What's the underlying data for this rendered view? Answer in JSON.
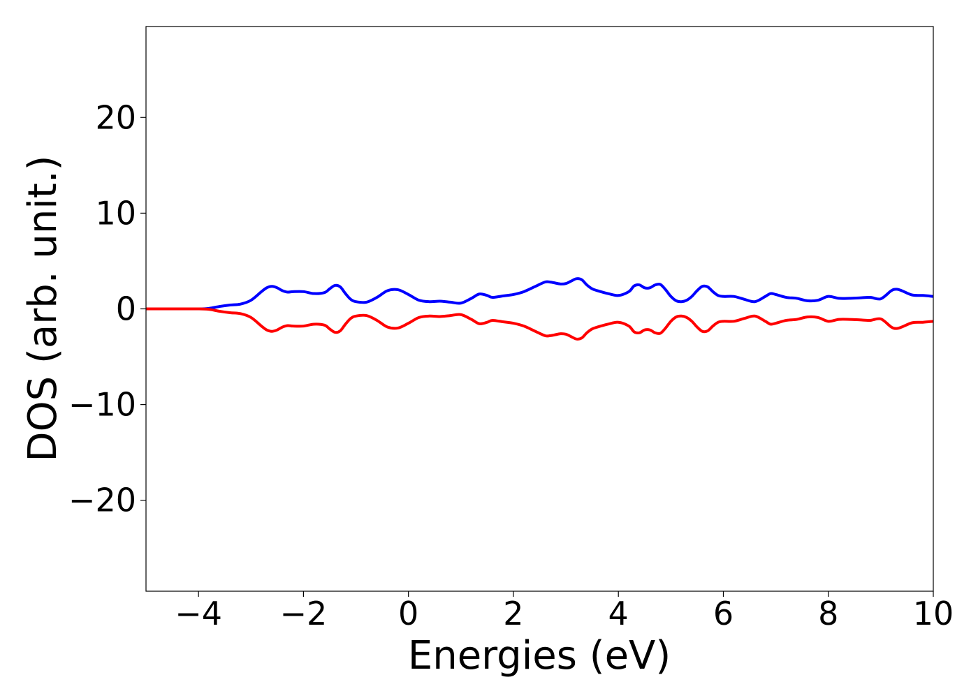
{
  "chart_data": {
    "type": "line",
    "title": "",
    "xlabel": "Energies (eV)",
    "ylabel": "DOS (arb. unit.)",
    "xlim": [
      -5,
      10
    ],
    "ylim": [
      -29.5,
      29.5
    ],
    "xticks": [
      -4,
      -2,
      0,
      2,
      4,
      6,
      8,
      10
    ],
    "xtick_labels": [
      "−4",
      "−2",
      "0",
      "2",
      "4",
      "6",
      "8",
      "10"
    ],
    "yticks": [
      20,
      10,
      0,
      -10,
      -20
    ],
    "ytick_labels": [
      "20",
      "10",
      "0",
      "−10",
      "−20"
    ],
    "grid": false,
    "legend": "none",
    "series": [
      {
        "color": "#0000ff",
        "x": [
          -5,
          -4.5,
          -4,
          -3.8,
          -3.6,
          -3.4,
          -3.2,
          -3.0,
          -2.8,
          -2.7,
          -2.6,
          -2.5,
          -2.4,
          -2.3,
          -2.2,
          -2.0,
          -1.8,
          -1.6,
          -1.5,
          -1.4,
          -1.3,
          -1.2,
          -1.1,
          -1.0,
          -0.8,
          -0.6,
          -0.4,
          -0.2,
          0,
          0.2,
          0.4,
          0.6,
          0.8,
          1.0,
          1.2,
          1.35,
          1.5,
          1.6,
          1.8,
          2.0,
          2.2,
          2.4,
          2.6,
          2.7,
          2.8,
          2.9,
          3.0,
          3.1,
          3.2,
          3.3,
          3.4,
          3.5,
          3.6,
          3.8,
          4.0,
          4.2,
          4.3,
          4.4,
          4.5,
          4.6,
          4.7,
          4.8,
          4.9,
          5.0,
          5.1,
          5.2,
          5.3,
          5.4,
          5.5,
          5.6,
          5.7,
          5.8,
          5.9,
          6.0,
          6.2,
          6.4,
          6.6,
          6.8,
          6.9,
          7.0,
          7.2,
          7.4,
          7.6,
          7.8,
          8.0,
          8.2,
          8.4,
          8.6,
          8.8,
          9.0,
          9.2,
          9.3,
          9.4,
          9.6,
          9.8,
          10.0
        ],
        "y": [
          0,
          0,
          0,
          0.05,
          0.25,
          0.4,
          0.5,
          0.9,
          1.8,
          2.2,
          2.35,
          2.2,
          1.9,
          1.75,
          1.8,
          1.8,
          1.6,
          1.7,
          2.1,
          2.45,
          2.3,
          1.6,
          1.0,
          0.75,
          0.7,
          1.2,
          1.9,
          2.0,
          1.5,
          0.9,
          0.75,
          0.8,
          0.7,
          0.6,
          1.1,
          1.55,
          1.4,
          1.2,
          1.35,
          1.5,
          1.8,
          2.3,
          2.8,
          2.8,
          2.7,
          2.6,
          2.65,
          2.9,
          3.15,
          3.05,
          2.5,
          2.1,
          1.9,
          1.6,
          1.4,
          1.8,
          2.4,
          2.5,
          2.2,
          2.2,
          2.5,
          2.55,
          2.0,
          1.3,
          0.85,
          0.75,
          0.9,
          1.3,
          1.9,
          2.35,
          2.3,
          1.8,
          1.4,
          1.3,
          1.3,
          1.0,
          0.75,
          1.3,
          1.6,
          1.5,
          1.2,
          1.1,
          0.85,
          0.9,
          1.3,
          1.1,
          1.1,
          1.15,
          1.2,
          1.05,
          1.9,
          2.05,
          1.9,
          1.45,
          1.4,
          1.3
        ]
      },
      {
        "color": "#ff0000",
        "x": [
          -5,
          -4.5,
          -4,
          -3.8,
          -3.6,
          -3.4,
          -3.2,
          -3.0,
          -2.8,
          -2.7,
          -2.6,
          -2.5,
          -2.4,
          -2.3,
          -2.2,
          -2.0,
          -1.8,
          -1.6,
          -1.5,
          -1.4,
          -1.3,
          -1.2,
          -1.1,
          -1.0,
          -0.8,
          -0.6,
          -0.4,
          -0.2,
          0,
          0.2,
          0.4,
          0.6,
          0.8,
          1.0,
          1.2,
          1.35,
          1.5,
          1.6,
          1.8,
          2.0,
          2.2,
          2.4,
          2.6,
          2.7,
          2.8,
          2.9,
          3.0,
          3.1,
          3.2,
          3.3,
          3.4,
          3.5,
          3.6,
          3.8,
          4.0,
          4.2,
          4.3,
          4.4,
          4.5,
          4.6,
          4.7,
          4.8,
          4.9,
          5.0,
          5.1,
          5.2,
          5.3,
          5.4,
          5.5,
          5.6,
          5.7,
          5.8,
          5.9,
          6.0,
          6.2,
          6.4,
          6.6,
          6.8,
          6.9,
          7.0,
          7.2,
          7.4,
          7.6,
          7.8,
          8.0,
          8.2,
          8.4,
          8.6,
          8.8,
          9.0,
          9.2,
          9.3,
          9.4,
          9.6,
          9.8,
          10.0
        ],
        "y": [
          0,
          0,
          0,
          -0.05,
          -0.25,
          -0.4,
          -0.5,
          -0.9,
          -1.8,
          -2.2,
          -2.35,
          -2.2,
          -1.9,
          -1.75,
          -1.8,
          -1.8,
          -1.6,
          -1.7,
          -2.1,
          -2.45,
          -2.3,
          -1.6,
          -1.0,
          -0.75,
          -0.7,
          -1.2,
          -1.9,
          -2.0,
          -1.5,
          -0.9,
          -0.75,
          -0.8,
          -0.7,
          -0.6,
          -1.1,
          -1.55,
          -1.4,
          -1.2,
          -1.35,
          -1.5,
          -1.8,
          -2.3,
          -2.8,
          -2.8,
          -2.7,
          -2.6,
          -2.65,
          -2.9,
          -3.15,
          -3.05,
          -2.5,
          -2.1,
          -1.9,
          -1.6,
          -1.4,
          -1.8,
          -2.4,
          -2.5,
          -2.2,
          -2.2,
          -2.5,
          -2.55,
          -2.0,
          -1.3,
          -0.85,
          -0.75,
          -0.9,
          -1.3,
          -1.9,
          -2.35,
          -2.3,
          -1.8,
          -1.4,
          -1.3,
          -1.3,
          -1.0,
          -0.75,
          -1.3,
          -1.6,
          -1.5,
          -1.2,
          -1.1,
          -0.85,
          -0.9,
          -1.3,
          -1.1,
          -1.1,
          -1.15,
          -1.2,
          -1.05,
          -1.9,
          -2.05,
          -1.9,
          -1.45,
          -1.4,
          -1.3
        ]
      }
    ]
  }
}
